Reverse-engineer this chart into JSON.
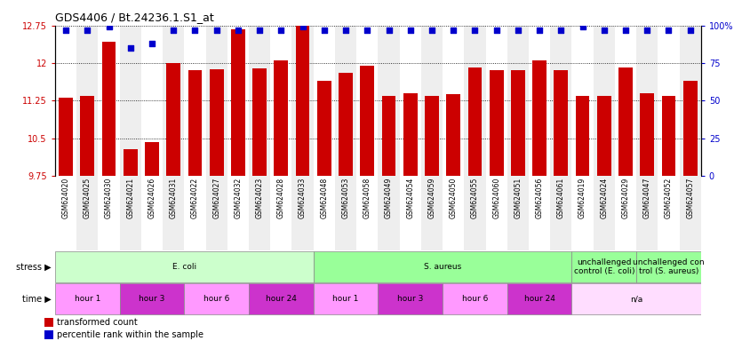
{
  "title": "GDS4406 / Bt.24236.1.S1_at",
  "samples": [
    "GSM624020",
    "GSM624025",
    "GSM624030",
    "GSM624021",
    "GSM624026",
    "GSM624031",
    "GSM624022",
    "GSM624027",
    "GSM624032",
    "GSM624023",
    "GSM624028",
    "GSM624033",
    "GSM624048",
    "GSM624053",
    "GSM624058",
    "GSM624049",
    "GSM624054",
    "GSM624059",
    "GSM624050",
    "GSM624055",
    "GSM624060",
    "GSM624051",
    "GSM624056",
    "GSM624061",
    "GSM624019",
    "GSM624024",
    "GSM624029",
    "GSM624047",
    "GSM624052",
    "GSM624057"
  ],
  "bar_values": [
    11.3,
    11.35,
    12.42,
    10.28,
    10.42,
    12.0,
    11.85,
    11.87,
    12.68,
    11.9,
    12.05,
    12.75,
    11.65,
    11.8,
    11.95,
    11.35,
    11.4,
    11.35,
    11.38,
    11.92,
    11.85,
    11.85,
    12.05,
    11.85,
    11.35,
    11.35,
    11.92,
    11.4,
    11.35,
    11.65
  ],
  "percentile_values": [
    97,
    97,
    99,
    85,
    88,
    97,
    97,
    97,
    97,
    97,
    97,
    99,
    97,
    97,
    97,
    97,
    97,
    97,
    97,
    97,
    97,
    97,
    97,
    97,
    99,
    97,
    97,
    97,
    97,
    97
  ],
  "ylim_left": [
    9.75,
    12.75
  ],
  "ylim_right": [
    0,
    100
  ],
  "yticks_left": [
    9.75,
    10.5,
    11.25,
    12.0,
    12.75
  ],
  "ytick_labels_left": [
    "9.75",
    "10.5",
    "11.25",
    "12",
    "12.75"
  ],
  "yticks_right": [
    0,
    25,
    50,
    75,
    100
  ],
  "ytick_labels_right": [
    "0",
    "25",
    "50",
    "75",
    "100%"
  ],
  "bar_color": "#cc0000",
  "dot_color": "#0000cc",
  "stress_groups": [
    {
      "label": "E. coli",
      "start": 0,
      "end": 12,
      "color": "#ccffcc"
    },
    {
      "label": "S. aureus",
      "start": 12,
      "end": 24,
      "color": "#99ff99"
    },
    {
      "label": "unchallenged\ncontrol (E. coli)",
      "start": 24,
      "end": 27,
      "color": "#99ff99"
    },
    {
      "label": "unchallenged con\ntrol (S. aureus)",
      "start": 27,
      "end": 30,
      "color": "#99ff99"
    }
  ],
  "time_groups": [
    {
      "label": "hour 1",
      "start": 0,
      "end": 3,
      "color": "#ff99ff"
    },
    {
      "label": "hour 3",
      "start": 3,
      "end": 6,
      "color": "#cc33cc"
    },
    {
      "label": "hour 6",
      "start": 6,
      "end": 9,
      "color": "#ff99ff"
    },
    {
      "label": "hour 24",
      "start": 9,
      "end": 12,
      "color": "#cc33cc"
    },
    {
      "label": "hour 1",
      "start": 12,
      "end": 15,
      "color": "#ff99ff"
    },
    {
      "label": "hour 3",
      "start": 15,
      "end": 18,
      "color": "#cc33cc"
    },
    {
      "label": "hour 6",
      "start": 18,
      "end": 21,
      "color": "#ff99ff"
    },
    {
      "label": "hour 24",
      "start": 21,
      "end": 24,
      "color": "#cc33cc"
    },
    {
      "label": "n/a",
      "start": 24,
      "end": 30,
      "color": "#ffddff"
    }
  ]
}
